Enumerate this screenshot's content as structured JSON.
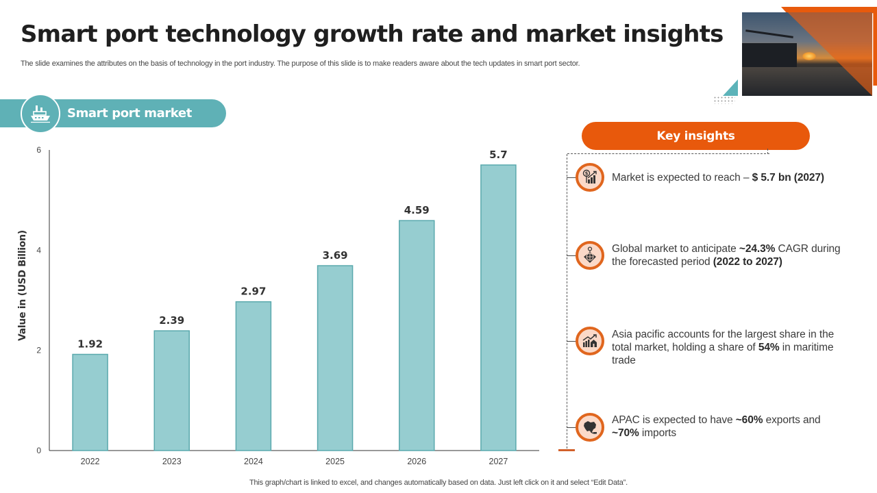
{
  "header": {
    "title": "Smart port technology growth rate and market insights",
    "subtitle": "The slide examines the attributes on the basis of technology in the port industry. The purpose of this slide is to make readers aware about the tech updates in smart port sector."
  },
  "section": {
    "label": "Smart port market",
    "icon": "ship-icon"
  },
  "colors": {
    "teal": "#5fb1b6",
    "bar_fill": "#96cdd0",
    "bar_edge": "#5aa9ad",
    "orange": "#e8590c",
    "icon_bg": "#fbd9c8"
  },
  "chart_data": {
    "type": "bar",
    "title": "",
    "xlabel": "",
    "ylabel": "Value in (USD Billion)",
    "categories": [
      "2022",
      "2023",
      "2024",
      "2025",
      "2026",
      "2027"
    ],
    "values": [
      1.92,
      2.39,
      2.97,
      3.69,
      4.59,
      5.7
    ],
    "data_labels": [
      "1.92",
      "2.39",
      "2.97",
      "3.69",
      "4.59",
      "5.7"
    ],
    "ylim": [
      0,
      6
    ],
    "yticks": [
      0,
      2,
      4,
      6
    ],
    "grid": false,
    "legend": "none"
  },
  "insights": {
    "heading": "Key insights",
    "items": [
      {
        "icon": "dollar-growth-chart-icon",
        "parts": [
          {
            "text": "Market is expected to reach – ",
            "bold": false
          },
          {
            "text": "$ 5.7 bn (2027)",
            "bold": true
          }
        ]
      },
      {
        "icon": "globe-location-icon",
        "parts": [
          {
            "text": "Global market to anticipate ",
            "bold": false
          },
          {
            "text": "~24.3%",
            "bold": true
          },
          {
            "text": " CAGR during the forecasted period ",
            "bold": false
          },
          {
            "text": "(2022 to 2027)",
            "bold": true
          }
        ]
      },
      {
        "icon": "market-growth-building-icon",
        "parts": [
          {
            "text": "Asia pacific accounts for the largest share in the total market, holding a share of ",
            "bold": false
          },
          {
            "text": "54%",
            "bold": true
          },
          {
            "text": " in maritime trade",
            "bold": false
          }
        ]
      },
      {
        "icon": "asia-map-icon",
        "parts": [
          {
            "text": "APAC is expected to have ",
            "bold": false
          },
          {
            "text": "~60%",
            "bold": true
          },
          {
            "text": " exports and ",
            "bold": false
          },
          {
            "text": "~70%",
            "bold": true
          },
          {
            "text": " imports",
            "bold": false
          }
        ]
      }
    ]
  },
  "footnote": "This graph/chart is linked to excel, and changes automatically based on data. Just left click on it and select “Edit Data”."
}
